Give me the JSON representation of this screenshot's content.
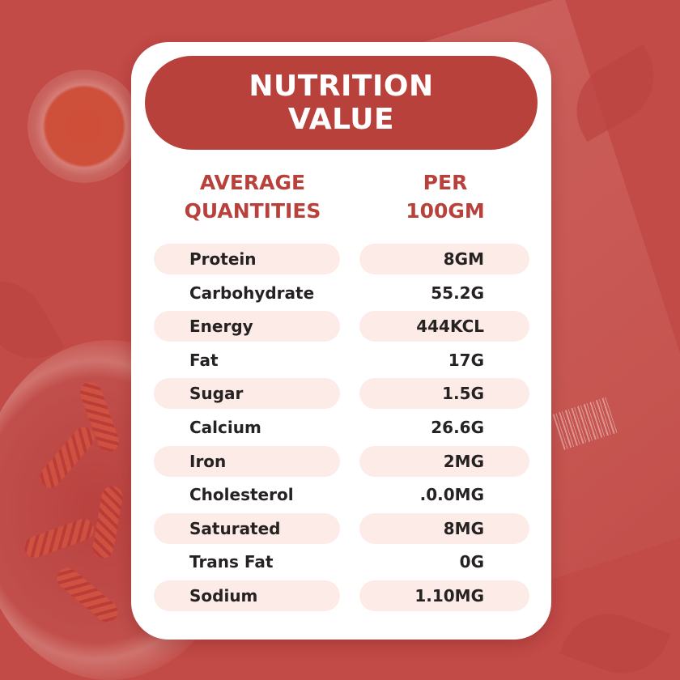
{
  "title_lines": [
    "NUTRITION",
    "VALUE"
  ],
  "column_headers": {
    "left": [
      "AVERAGE",
      "QUANTITIES"
    ],
    "right": [
      "PER",
      "100GM"
    ]
  },
  "rows": [
    {
      "nutrient": "Protein",
      "value": "8GM"
    },
    {
      "nutrient": "Carbohydrate",
      "value": "55.2G"
    },
    {
      "nutrient": "Energy",
      "value": "444KCL"
    },
    {
      "nutrient": "Fat",
      "value": "17G"
    },
    {
      "nutrient": "Sugar",
      "value": "1.5G"
    },
    {
      "nutrient": "Calcium",
      "value": "26.6G"
    },
    {
      "nutrient": "Iron",
      "value": "2MG"
    },
    {
      "nutrient": "Cholesterol",
      "value": ".0.0MG"
    },
    {
      "nutrient": "Saturated",
      "value": "8MG"
    },
    {
      "nutrient": "Trans Fat",
      "value": "0G"
    },
    {
      "nutrient": "Sodium",
      "value": "1.10MG"
    }
  ],
  "colors": {
    "background": "#c24b47",
    "accent": "#b8413c",
    "row_shade": "#fcebe6",
    "text": "#262222"
  }
}
